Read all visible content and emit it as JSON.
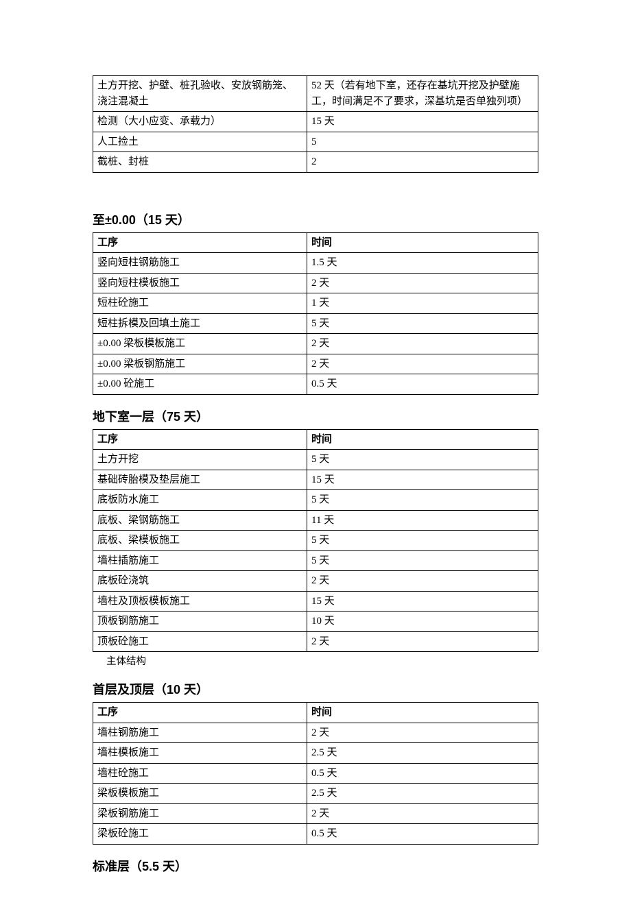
{
  "table1": {
    "rows": [
      [
        "土方开挖、护壁、桩孔验收、安放钢筋笼、浇注混凝土",
        "52 天（若有地下室，还存在基坑开挖及护壁施工，时间满足不了要求，深基坑是否单独列项）"
      ],
      [
        "检测（大小应变、承载力）",
        "15 天"
      ],
      [
        "人工捡土",
        "5"
      ],
      [
        "截桩、封桩",
        "2"
      ]
    ]
  },
  "section2": {
    "heading": "至±0.00（15 天）",
    "columns": [
      "工序",
      "时间"
    ],
    "rows": [
      [
        "竖向短柱钢筋施工",
        "1.5 天"
      ],
      [
        "竖向短柱模板施工",
        "2 天"
      ],
      [
        "短柱砼施工",
        "1 天"
      ],
      [
        "短柱拆模及回填土施工",
        "5 天"
      ],
      [
        "±0.00 梁板模板施工",
        "2 天"
      ],
      [
        "±0.00 梁板钢筋施工",
        "2 天"
      ],
      [
        "±0.00 砼施工",
        "0.5 天"
      ]
    ]
  },
  "section3": {
    "heading": "地下室一层（75 天）",
    "columns": [
      "工序",
      "时间"
    ],
    "rows": [
      [
        "土方开挖",
        "5 天"
      ],
      [
        "基础砖胎模及垫层施工",
        "15 天"
      ],
      [
        "底板防水施工",
        "5 天"
      ],
      [
        "底板、梁钢筋施工",
        "11 天"
      ],
      [
        "底板、梁模板施工",
        "5 天"
      ],
      [
        "墙柱插筋施工",
        "5 天"
      ],
      [
        "底板砼浇筑",
        "2 天"
      ],
      [
        "墙柱及顶板模板施工",
        "15 天"
      ],
      [
        "顶板钢筋施工",
        "10 天"
      ],
      [
        "顶板砼施工",
        "2 天"
      ]
    ],
    "note": "主体结构"
  },
  "section4": {
    "heading": "首层及顶层（10 天）",
    "columns": [
      "工序",
      "时间"
    ],
    "rows": [
      [
        "墙柱钢筋施工",
        "2 天"
      ],
      [
        "墙柱模板施工",
        "2.5 天"
      ],
      [
        "墙柱砼施工",
        "0.5 天"
      ],
      [
        "梁板模板施工",
        "2.5 天"
      ],
      [
        "梁板钢筋施工",
        "2 天"
      ],
      [
        "梁板砼施工",
        "0.5 天"
      ]
    ]
  },
  "section5": {
    "heading": "标准层（5.5 天）"
  }
}
